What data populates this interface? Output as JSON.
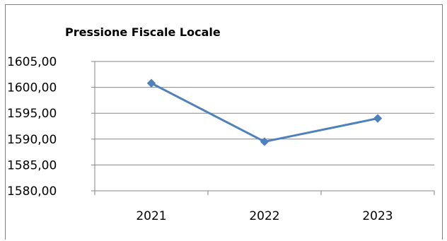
{
  "chart_data": {
    "type": "line",
    "title": "Pressione Fiscale Locale",
    "categories": [
      "2021",
      "2022",
      "2023"
    ],
    "series": [
      {
        "values": [
          1600.8,
          1589.5,
          1594.0
        ],
        "color": "#4f81bd",
        "marker": "diamond"
      }
    ],
    "ylim": [
      1580,
      1605
    ],
    "yticks": [
      1605,
      1600,
      1595,
      1590,
      1585,
      1580
    ],
    "ytick_labels": [
      "1605,00",
      "1600,00",
      "1595,00",
      "1590,00",
      "1585,00",
      "1580,00"
    ],
    "grid": true,
    "legend": "none"
  }
}
